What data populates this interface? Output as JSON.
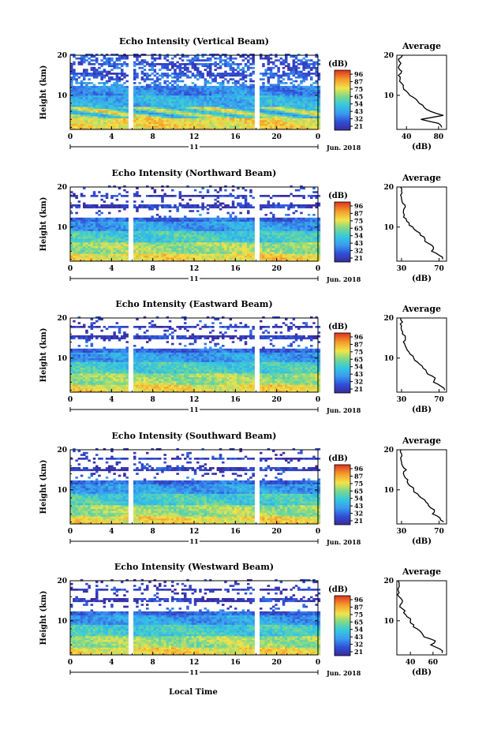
{
  "figure": {
    "xlabel": "Local Time"
  },
  "colorbar": {
    "unit": "(dB)"
  },
  "chart_data": [
    {
      "type": "heatmap",
      "title": "Echo Intensity (Vertical Beam)",
      "ylabel": "Height (km)",
      "xticks": [
        "0",
        "4",
        "8",
        "12",
        "16",
        "20",
        "0"
      ],
      "yticks": [
        10,
        20
      ],
      "ylim": [
        1.5,
        20
      ],
      "xlim": [
        0,
        24
      ],
      "date_day": "11",
      "date_month": "Jun. 2018",
      "data_gaps_hours": [
        [
          5.5,
          5.9
        ],
        [
          17.8,
          18.3
        ]
      ],
      "colorbar_ticks": [
        "96",
        "87",
        "75",
        "65",
        "54",
        "43",
        "32",
        "21"
      ],
      "avg_title": "Average",
      "avg_xlabel": "(dB)",
      "avg_xticks": [
        40,
        80
      ],
      "avg_xlim": [
        28,
        90
      ],
      "avg_profile": {
        "height_km": [
          2,
          3,
          4,
          5,
          6,
          7,
          8,
          9,
          10,
          11,
          12,
          13,
          14,
          15,
          16,
          17,
          18,
          19,
          20
        ],
        "db": [
          84,
          80,
          58,
          86,
          70,
          62,
          56,
          52,
          44,
          40,
          36,
          34,
          32,
          30,
          34,
          30,
          33,
          30,
          35
        ]
      }
    },
    {
      "type": "heatmap",
      "title": "Echo Intensity (Northward Beam)",
      "ylabel": "Height (km)",
      "xticks": [
        "0",
        "4",
        "8",
        "12",
        "16",
        "20",
        "0"
      ],
      "yticks": [
        10,
        20
      ],
      "ylim": [
        1.5,
        20
      ],
      "xlim": [
        0,
        24
      ],
      "date_day": "11",
      "date_month": "Jun. 2018",
      "data_gaps_hours": [
        [
          5.5,
          5.9
        ],
        [
          17.8,
          18.3
        ]
      ],
      "colorbar_ticks": [
        "96",
        "87",
        "75",
        "65",
        "54",
        "43",
        "32",
        "21"
      ],
      "avg_title": "Average",
      "avg_xlabel": "(dB)",
      "avg_xticks": [
        30,
        70
      ],
      "avg_xlim": [
        25,
        78
      ],
      "avg_profile": {
        "height_km": [
          2,
          3,
          4,
          5,
          6,
          7,
          8,
          9,
          10,
          11,
          12,
          13,
          14,
          15,
          16,
          17,
          18,
          19,
          20
        ],
        "db": [
          74,
          70,
          62,
          64,
          58,
          55,
          50,
          46,
          42,
          38,
          35,
          33,
          32,
          34,
          31,
          30,
          29,
          30,
          29
        ]
      }
    },
    {
      "type": "heatmap",
      "title": "Echo Intensity (Eastward Beam)",
      "ylabel": "Height (km)",
      "xticks": [
        "0",
        "4",
        "8",
        "12",
        "16",
        "20",
        "0"
      ],
      "yticks": [
        10,
        20
      ],
      "ylim": [
        1.5,
        20
      ],
      "xlim": [
        0,
        24
      ],
      "date_day": "11",
      "date_month": "Jun. 2018",
      "data_gaps_hours": [
        [
          5.5,
          5.9
        ],
        [
          17.8,
          18.3
        ]
      ],
      "colorbar_ticks": [
        "96",
        "87",
        "75",
        "65",
        "54",
        "43",
        "32",
        "21"
      ],
      "avg_title": "Average",
      "avg_xlabel": "(dB)",
      "avg_xticks": [
        30,
        70
      ],
      "avg_xlim": [
        25,
        78
      ],
      "avg_profile": {
        "height_km": [
          2,
          3,
          4,
          5,
          6,
          7,
          8,
          9,
          10,
          11,
          12,
          13,
          14,
          15,
          16,
          17,
          18,
          19,
          20
        ],
        "db": [
          76,
          72,
          64,
          66,
          58,
          56,
          52,
          47,
          43,
          39,
          36,
          34,
          32,
          34,
          31,
          30,
          30,
          31,
          29
        ]
      }
    },
    {
      "type": "heatmap",
      "title": "Echo Intensity (Southward Beam)",
      "ylabel": "Height (km)",
      "xticks": [
        "0",
        "4",
        "8",
        "12",
        "16",
        "20",
        "0"
      ],
      "yticks": [
        10,
        20
      ],
      "ylim": [
        1.5,
        20
      ],
      "xlim": [
        0,
        24
      ],
      "date_day": "11",
      "date_month": "Jun. 2018",
      "data_gaps_hours": [
        [
          5.5,
          5.9
        ],
        [
          17.8,
          18.3
        ]
      ],
      "colorbar_ticks": [
        "96",
        "87",
        "75",
        "65",
        "54",
        "43",
        "32",
        "21"
      ],
      "avg_title": "Average",
      "avg_xlabel": "(dB)",
      "avg_xticks": [
        30,
        70
      ],
      "avg_xlim": [
        25,
        78
      ],
      "avg_profile": {
        "height_km": [
          2,
          3,
          4,
          5,
          6,
          7,
          8,
          9,
          10,
          11,
          12,
          13,
          14,
          15,
          16,
          17,
          18,
          19,
          20
        ],
        "db": [
          75,
          71,
          63,
          65,
          59,
          56,
          51,
          47,
          43,
          39,
          36,
          34,
          32,
          35,
          31,
          30,
          29,
          30,
          29
        ]
      }
    },
    {
      "type": "heatmap",
      "title": "Echo Intensity (Westward Beam)",
      "ylabel": "Height (km)",
      "xticks": [
        "0",
        "4",
        "8",
        "12",
        "16",
        "20",
        "0"
      ],
      "yticks": [
        10,
        20
      ],
      "ylim": [
        1.5,
        20
      ],
      "xlim": [
        0,
        24
      ],
      "date_day": "11",
      "date_month": "Jun. 2018",
      "data_gaps_hours": [
        [
          5.5,
          5.9
        ],
        [
          17.8,
          18.3
        ]
      ],
      "colorbar_ticks": [
        "96",
        "87",
        "75",
        "65",
        "54",
        "43",
        "32",
        "21"
      ],
      "avg_title": "Average",
      "avg_xlabel": "(dB)",
      "avg_xticks": [
        40,
        60
      ],
      "avg_xlim": [
        28,
        72
      ],
      "avg_profile": {
        "height_km": [
          2,
          3,
          4,
          5,
          6,
          7,
          8,
          9,
          10,
          11,
          12,
          13,
          14,
          15,
          16,
          17,
          18,
          19,
          20
        ],
        "db": [
          68,
          66,
          58,
          62,
          52,
          50,
          46,
          43,
          40,
          37,
          34,
          33,
          31,
          33,
          30,
          30,
          29,
          30,
          29
        ]
      }
    }
  ]
}
